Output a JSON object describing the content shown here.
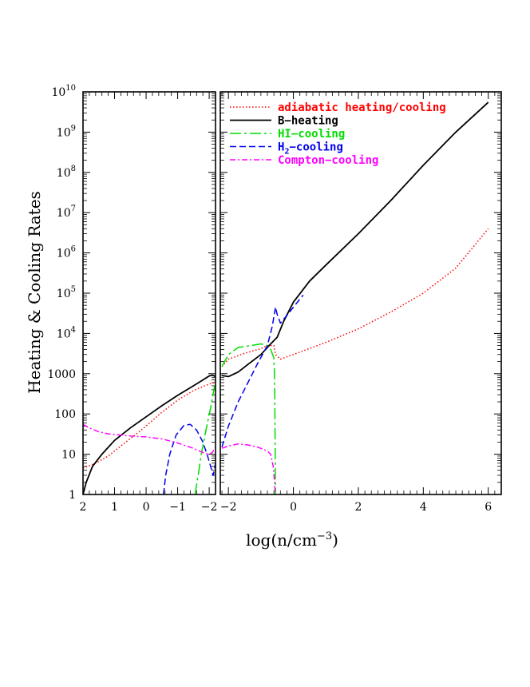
{
  "chart_data": {
    "type": "line",
    "ylabel": "Heating & Cooling Rates",
    "xlabel": "log(n/cm",
    "xlabel_sup": "−3",
    "xlabel_end": ")",
    "yscale": "log",
    "ylim": [
      1,
      10000000000
    ],
    "y_ticks": [
      {
        "v": 1,
        "label": "1"
      },
      {
        "v": 10,
        "label": "10"
      },
      {
        "v": 100,
        "label": "100"
      },
      {
        "v": 1000,
        "label": "1000"
      },
      {
        "v": 10000,
        "base": "10",
        "exp": "4"
      },
      {
        "v": 100000,
        "base": "10",
        "exp": "5"
      },
      {
        "v": 1000000,
        "base": "10",
        "exp": "6"
      },
      {
        "v": 10000000,
        "base": "10",
        "exp": "7"
      },
      {
        "v": 100000000,
        "base": "10",
        "exp": "8"
      },
      {
        "v": 1000000000,
        "base": "10",
        "exp": "9"
      },
      {
        "v": 10000000000,
        "base": "10",
        "exp": "10"
      }
    ],
    "panels": [
      {
        "name": "expansion",
        "x_reversed": true,
        "xlim": [
          2.0,
          -2.2
        ],
        "x_ticks": [
          {
            "v": 2,
            "label": "2"
          },
          {
            "v": 1,
            "label": "1"
          },
          {
            "v": 0,
            "label": "0"
          },
          {
            "v": -1,
            "label": "−1"
          },
          {
            "v": -2,
            "label": "−2"
          }
        ],
        "series": [
          {
            "key": "adiabatic",
            "points": [
              [
                2.0,
                4.5
              ],
              [
                1.6,
                6
              ],
              [
                1.2,
                9
              ],
              [
                0.8,
                16
              ],
              [
                0.4,
                28
              ],
              [
                0.0,
                50
              ],
              [
                -0.5,
                110
              ],
              [
                -1.0,
                220
              ],
              [
                -1.5,
                380
              ],
              [
                -1.8,
                480
              ],
              [
                -2.0,
                550
              ],
              [
                -2.15,
                600
              ]
            ]
          },
          {
            "key": "b_heating",
            "points": [
              [
                2.0,
                1
              ],
              [
                1.9,
                2
              ],
              [
                1.7,
                5
              ],
              [
                1.4,
                10
              ],
              [
                1.0,
                22
              ],
              [
                0.5,
                45
              ],
              [
                0.0,
                85
              ],
              [
                -0.5,
                160
              ],
              [
                -1.0,
                290
              ],
              [
                -1.5,
                500
              ],
              [
                -1.8,
                700
              ],
              [
                -2.0,
                880
              ],
              [
                -2.1,
                920
              ],
              [
                -2.2,
                850
              ]
            ]
          },
          {
            "key": "hi_cooling",
            "points": [
              [
                -1.55,
                1
              ],
              [
                -1.65,
                3
              ],
              [
                -1.75,
                10
              ],
              [
                -1.9,
                40
              ],
              [
                -2.05,
                150
              ],
              [
                -2.15,
                400
              ],
              [
                -2.2,
                700
              ]
            ]
          },
          {
            "key": "h2_cooling",
            "points": [
              [
                -0.55,
                1
              ],
              [
                -0.62,
                3
              ],
              [
                -0.75,
                10
              ],
              [
                -0.95,
                30
              ],
              [
                -1.2,
                52
              ],
              [
                -1.4,
                55
              ],
              [
                -1.6,
                40
              ],
              [
                -1.8,
                20
              ],
              [
                -1.95,
                9
              ],
              [
                -2.08,
                4
              ],
              [
                -2.13,
                3
              ],
              [
                -2.2,
                6
              ]
            ]
          },
          {
            "key": "compton",
            "points": [
              [
                2.0,
                55
              ],
              [
                1.8,
                45
              ],
              [
                1.5,
                36
              ],
              [
                1.2,
                32
              ],
              [
                0.8,
                30
              ],
              [
                0.4,
                28
              ],
              [
                0.0,
                27
              ],
              [
                -0.5,
                24
              ],
              [
                -1.0,
                19
              ],
              [
                -1.5,
                14
              ],
              [
                -1.8,
                11
              ],
              [
                -2.0,
                10
              ],
              [
                -2.1,
                11
              ],
              [
                -2.2,
                15
              ]
            ]
          }
        ]
      },
      {
        "name": "collapse",
        "x_reversed": false,
        "xlim": [
          -2.25,
          6.4
        ],
        "x_ticks": [
          {
            "v": -2,
            "label": "−2"
          },
          {
            "v": 0,
            "label": "0"
          },
          {
            "v": 2,
            "label": "2"
          },
          {
            "v": 4,
            "label": "4"
          },
          {
            "v": 6,
            "label": "6"
          }
        ],
        "series": [
          {
            "key": "adiabatic",
            "points": [
              [
                -2.2,
                1500
              ],
              [
                -2.0,
                2300
              ],
              [
                -1.5,
                3200
              ],
              [
                -1.0,
                4200
              ],
              [
                -0.8,
                5000
              ],
              [
                -0.6,
                5000
              ],
              [
                -0.55,
                3000
              ],
              [
                -0.4,
                2300
              ],
              [
                0.0,
                3000
              ],
              [
                1.0,
                6000
              ],
              [
                2.0,
                13000
              ],
              [
                3.0,
                34000
              ],
              [
                4.0,
                100000
              ],
              [
                5.0,
                420000
              ],
              [
                6.0,
                4000000
              ]
            ]
          },
          {
            "key": "b_heating",
            "points": [
              [
                -2.2,
                900
              ],
              [
                -2.0,
                850
              ],
              [
                -1.7,
                1100
              ],
              [
                -1.4,
                1700
              ],
              [
                -1.0,
                3000
              ],
              [
                -0.7,
                5500
              ],
              [
                -0.5,
                8000
              ],
              [
                -0.3,
                20000
              ],
              [
                0.0,
                60000
              ],
              [
                0.5,
                200000
              ],
              [
                1.0,
                500000
              ],
              [
                2.0,
                3000000
              ],
              [
                3.0,
                20000000
              ],
              [
                4.0,
                150000000
              ],
              [
                5.0,
                1000000000
              ],
              [
                6.0,
                5500000000
              ]
            ]
          },
          {
            "key": "hi_cooling",
            "points": [
              [
                -2.2,
                1500
              ],
              [
                -2.0,
                3000
              ],
              [
                -1.7,
                4500
              ],
              [
                -1.3,
                5000
              ],
              [
                -1.0,
                5500
              ],
              [
                -0.8,
                5000
              ],
              [
                -0.7,
                4000
              ],
              [
                -0.6,
                2500
              ],
              [
                -0.58,
                800
              ],
              [
                -0.57,
                100
              ],
              [
                -0.56,
                10
              ],
              [
                -0.55,
                1
              ]
            ]
          },
          {
            "key": "h2_cooling",
            "points": [
              [
                -2.2,
                15
              ],
              [
                -2.0,
                50
              ],
              [
                -1.7,
                200
              ],
              [
                -1.4,
                600
              ],
              [
                -1.1,
                1800
              ],
              [
                -0.8,
                5000
              ],
              [
                -0.65,
                15000
              ],
              [
                -0.55,
                45000
              ],
              [
                -0.5,
                30000
              ],
              [
                -0.4,
                18000
              ],
              [
                -0.2,
                28000
              ],
              [
                0.0,
                45000
              ],
              [
                0.3,
                90000
              ]
            ]
          },
          {
            "key": "compton",
            "points": [
              [
                -2.2,
                14
              ],
              [
                -2.0,
                16
              ],
              [
                -1.7,
                18
              ],
              [
                -1.4,
                17
              ],
              [
                -1.1,
                15
              ],
              [
                -0.8,
                12
              ],
              [
                -0.7,
                10
              ],
              [
                -0.62,
                5
              ],
              [
                -0.58,
                2
              ],
              [
                -0.56,
                1
              ]
            ]
          }
        ]
      }
    ],
    "legend": {
      "placement": "top-right",
      "entries": [
        {
          "key": "adiabatic",
          "label": "adiabatic heating/cooling",
          "color": "#ff0000",
          "style": "dotted"
        },
        {
          "key": "b_heating",
          "label": "B−heating",
          "color": "#000000",
          "style": "solid"
        },
        {
          "key": "hi_cooling",
          "label": "HI−cooling",
          "color": "#00dd00",
          "style": "long-dash-dot"
        },
        {
          "key": "h2_cooling",
          "label": "H",
          "label_sub": "2",
          "label_end": "−cooling",
          "color": "#0000ee",
          "style": "dashed"
        },
        {
          "key": "compton",
          "label": "Compton−cooling",
          "color": "#ff00ff",
          "style": "dash-dot"
        }
      ]
    }
  }
}
